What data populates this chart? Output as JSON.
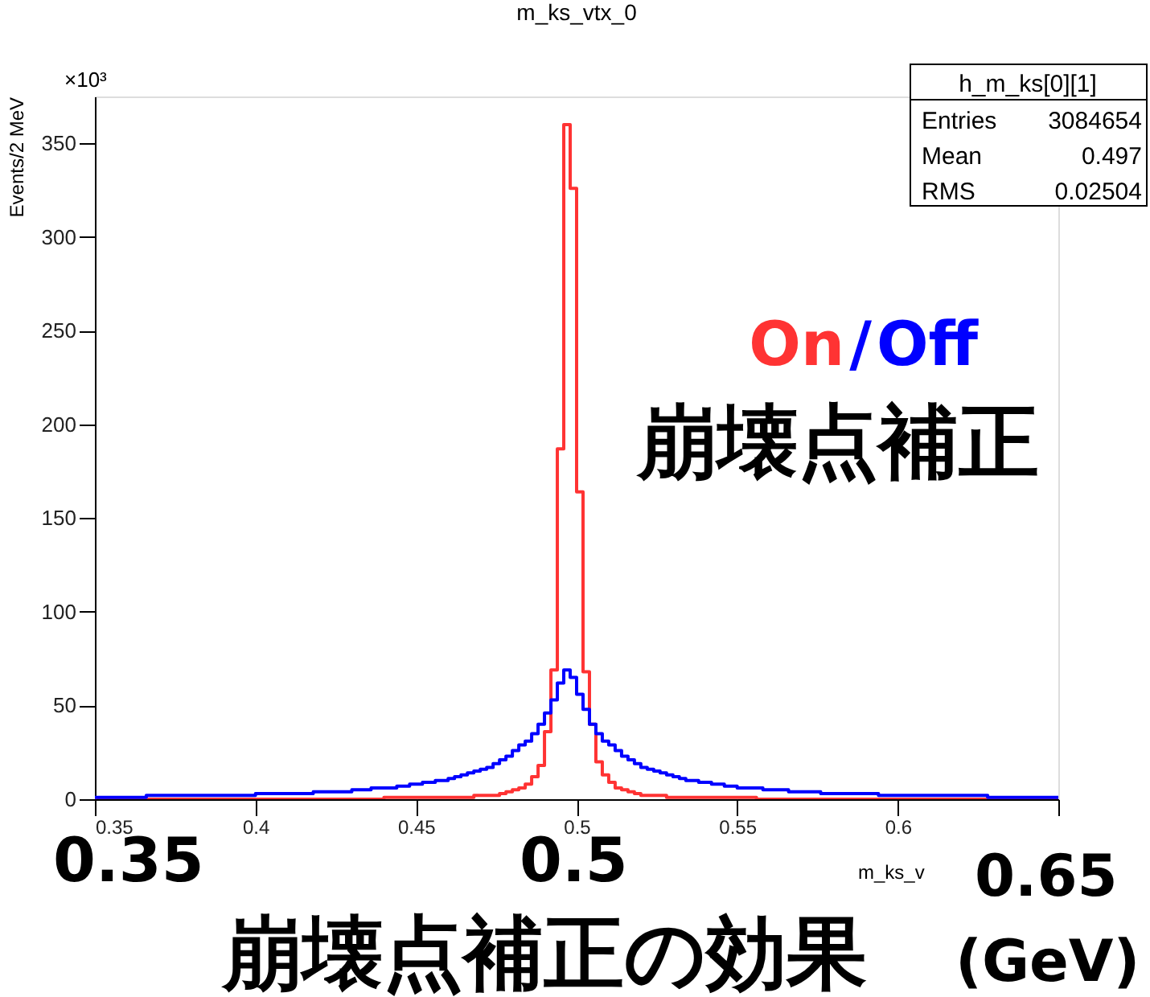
{
  "chart_data": {
    "type": "histogram",
    "title": "m_ks_vtx_0",
    "xlabel": "m_ks_v",
    "ylabel": "Events/2 MeV",
    "bins": [
      0.35,
      0.352,
      0.354,
      0.356,
      0.358,
      0.36,
      0.362,
      0.364,
      0.366,
      0.368,
      0.37,
      0.372,
      0.374,
      0.376,
      0.378,
      0.38,
      0.382,
      0.384,
      0.386,
      0.388,
      0.39,
      0.392,
      0.394,
      0.396,
      0.398,
      0.4,
      0.402,
      0.404,
      0.406,
      0.408,
      0.41,
      0.412,
      0.414,
      0.416,
      0.418,
      0.42,
      0.422,
      0.424,
      0.426,
      0.428,
      0.43,
      0.432,
      0.434,
      0.436,
      0.438,
      0.44,
      0.442,
      0.444,
      0.446,
      0.448,
      0.45,
      0.452,
      0.454,
      0.456,
      0.458,
      0.46,
      0.462,
      0.464,
      0.466,
      0.468,
      0.47,
      0.472,
      0.474,
      0.476,
      0.478,
      0.48,
      0.482,
      0.484,
      0.486,
      0.488,
      0.49,
      0.492,
      0.494,
      0.496,
      0.498,
      0.5,
      0.502,
      0.504,
      0.506,
      0.508,
      0.51,
      0.512,
      0.514,
      0.516,
      0.518,
      0.52,
      0.522,
      0.524,
      0.526,
      0.528,
      0.53,
      0.532,
      0.534,
      0.536,
      0.538,
      0.54,
      0.542,
      0.544,
      0.546,
      0.548,
      0.55,
      0.552,
      0.554,
      0.556,
      0.558,
      0.56,
      0.562,
      0.564,
      0.566,
      0.568,
      0.57,
      0.572,
      0.574,
      0.576,
      0.578,
      0.58,
      0.582,
      0.584,
      0.586,
      0.588,
      0.59,
      0.592,
      0.594,
      0.596,
      0.598,
      0.6,
      0.602,
      0.604,
      0.606,
      0.608,
      0.61,
      0.612,
      0.614,
      0.616,
      0.618,
      0.62,
      0.622,
      0.624,
      0.626,
      0.628,
      0.63,
      0.632,
      0.634,
      0.636,
      0.638,
      0.64,
      0.642,
      0.644,
      0.646,
      0.648,
      0.65
    ],
    "series": [
      {
        "name": "On",
        "color": "#ff3333",
        "values": [
          0,
          0,
          0,
          0,
          0,
          0,
          0,
          0,
          0,
          0,
          0,
          0,
          0,
          0,
          0,
          0,
          0,
          0,
          0,
          0,
          0,
          0,
          0,
          0,
          0,
          0,
          0,
          0,
          0,
          0,
          0,
          0,
          0,
          0,
          0,
          0,
          0,
          0,
          0,
          0,
          0,
          0,
          0,
          0,
          0,
          1,
          1,
          1,
          1,
          1,
          1,
          1,
          1,
          1,
          1,
          1,
          1,
          1,
          1,
          2,
          2,
          2,
          2,
          3,
          4,
          5,
          6,
          8,
          12,
          18,
          36,
          69,
          187,
          360,
          326,
          164,
          68,
          40,
          20,
          13,
          9,
          6,
          5,
          4,
          3,
          2,
          2,
          2,
          2,
          1,
          1,
          1,
          1,
          1,
          1,
          1,
          1,
          1,
          1,
          1,
          1,
          1,
          1,
          0,
          0,
          0,
          0,
          0,
          0,
          0,
          0,
          0,
          0,
          0,
          0,
          0,
          0,
          0,
          0,
          0,
          0,
          0,
          0,
          0,
          0,
          0,
          0,
          0,
          0,
          0,
          0,
          0,
          0,
          0,
          0,
          0,
          0,
          0,
          0,
          0,
          0,
          0,
          0,
          0,
          0,
          0,
          0,
          0,
          0,
          0
        ]
      },
      {
        "name": "Off",
        "color": "#0000ff",
        "values": [
          1,
          1,
          1,
          1,
          1,
          1,
          1,
          1,
          2,
          2,
          2,
          2,
          2,
          2,
          2,
          2,
          2,
          2,
          2,
          2,
          2,
          2,
          2,
          2,
          2,
          3,
          3,
          3,
          3,
          3,
          3,
          3,
          3,
          3,
          4,
          4,
          4,
          4,
          4,
          4,
          5,
          5,
          5,
          6,
          6,
          6,
          6,
          7,
          7,
          8,
          8,
          9,
          9,
          10,
          10,
          11,
          12,
          13,
          14,
          15,
          16,
          17,
          19,
          21,
          23,
          26,
          29,
          31,
          35,
          40,
          46,
          53,
          62,
          69,
          65,
          56,
          48,
          40,
          35,
          31,
          29,
          26,
          23,
          21,
          19,
          17,
          16,
          15,
          14,
          13,
          12,
          11,
          10,
          10,
          9,
          9,
          8,
          8,
          7,
          7,
          6,
          6,
          6,
          6,
          5,
          5,
          5,
          5,
          4,
          4,
          4,
          4,
          4,
          3,
          3,
          3,
          3,
          3,
          3,
          3,
          3,
          3,
          2,
          2,
          2,
          2,
          2,
          2,
          2,
          2,
          2,
          2,
          2,
          2,
          2,
          2,
          2,
          2,
          2,
          1,
          1,
          1,
          1,
          1,
          1,
          1,
          1,
          1,
          1,
          1
        ]
      }
    ],
    "xlim": [
      0.35,
      0.65
    ],
    "xticks": [
      0.35,
      0.4,
      0.45,
      0.5,
      0.55,
      0.6,
      {
        "value": 0.65,
        "label": null
      }
    ],
    "ylim": [
      0,
      375
    ],
    "yticks": [
      0,
      50,
      100,
      150,
      200,
      250,
      300,
      350
    ],
    "grid": false,
    "legend": "right",
    "annotations": [
      "×10³",
      "h_m_ks[0][1]",
      "Entries",
      "3084654",
      "Mean",
      "0.497",
      "RMS",
      "0.02504",
      "/",
      "崩壊点補正",
      "0.35",
      "0.5",
      "0.65",
      "崩壊点補正の効果",
      "(GeV)"
    ]
  }
}
